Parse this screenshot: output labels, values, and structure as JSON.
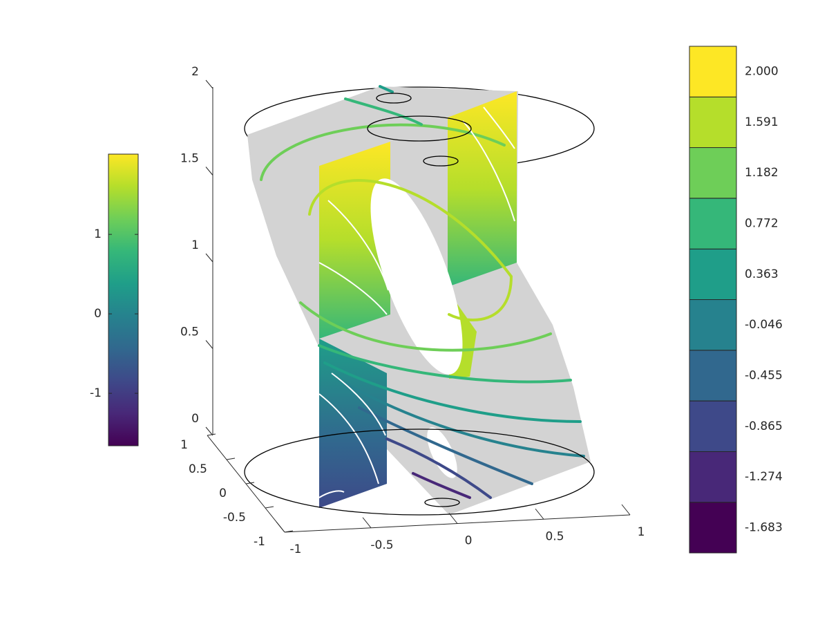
{
  "chart_data": {
    "type": "surface3d",
    "xlim": [
      -1,
      1
    ],
    "xticks": [
      -1,
      -0.5,
      0,
      0.5,
      1
    ],
    "ylim": [
      -1,
      1
    ],
    "yticks": [
      -1,
      -0.5,
      0,
      0.5,
      1
    ],
    "zlim": [
      0,
      2
    ],
    "zticks": [
      0,
      0.5,
      1,
      1.5,
      2
    ],
    "colorbars": [
      {
        "clim": [
          -1.66,
          2.01
        ],
        "ticks": [
          -1,
          0,
          1
        ],
        "colormap": [
          "#440154",
          "#482878",
          "#3e4989",
          "#31688e",
          "#26828e",
          "#1f9e89",
          "#35b779",
          "#6ece58",
          "#b5de2b",
          "#fde725"
        ]
      },
      {
        "clim": [
          -1.8875,
          2.2045
        ],
        "ticks": [
          {
            "value": -1.683,
            "label": "-1.683"
          },
          {
            "value": -1.274,
            "label": "-1.274"
          },
          {
            "value": -0.865,
            "label": "-0.865"
          },
          {
            "value": -0.455,
            "label": "-0.455"
          },
          {
            "value": -0.046,
            "label": "-0.046"
          },
          {
            "value": 0.363,
            "label": "0.363"
          },
          {
            "value": 0.772,
            "label": "0.772"
          },
          {
            "value": 1.182,
            "label": "1.182"
          },
          {
            "value": 1.591,
            "label": "1.591"
          },
          {
            "value": 2,
            "label": "2.000"
          }
        ],
        "colors": [
          "#440154",
          "#482878",
          "#3e4989",
          "#31688e",
          "#26828e",
          "#1f9e89",
          "#35b779",
          "#6ece58",
          "#b5de2b",
          "#fde725"
        ]
      }
    ]
  }
}
